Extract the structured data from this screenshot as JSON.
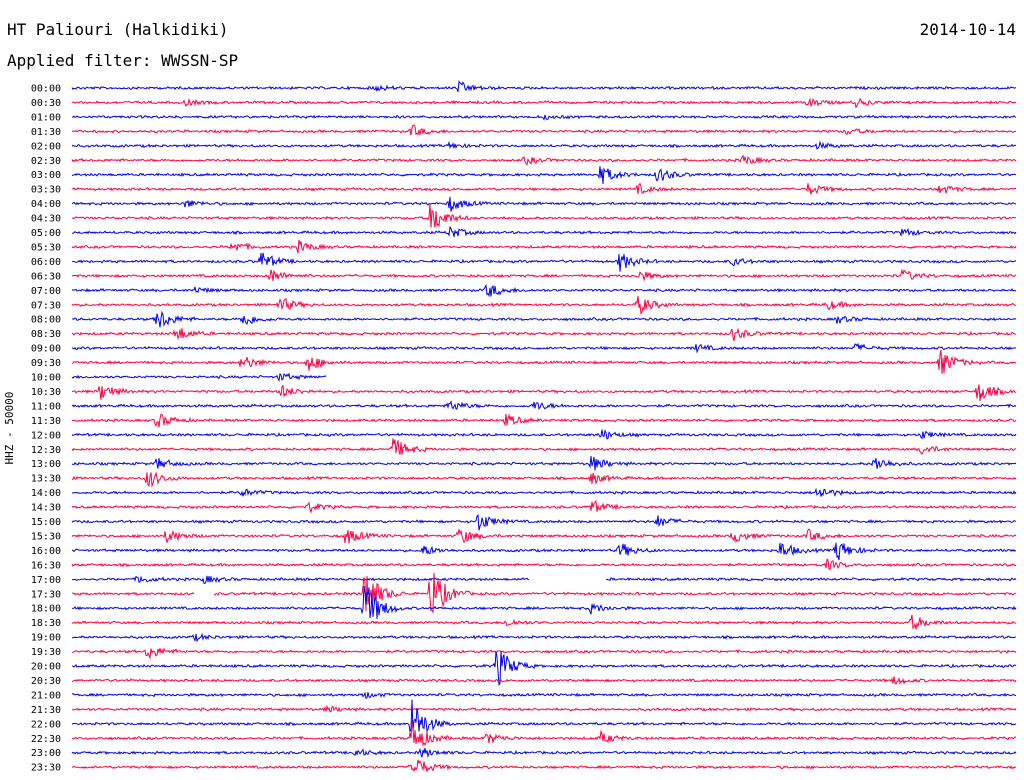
{
  "header": {
    "station": "HT Paliouri (Halkidiki)",
    "date": "2014-10-14",
    "filter": "Applied filter: WWSSN-SP"
  },
  "chart_data": {
    "type": "line",
    "ylabel": "HHZ - 50000",
    "colors": {
      "even": "#0000ee",
      "odd": "#ff0040"
    },
    "rows": [
      {
        "time": "00:00",
        "events": [
          [
            0.32,
            3
          ],
          [
            0.41,
            6
          ]
        ]
      },
      {
        "time": "00:30",
        "events": [
          [
            0.12,
            3
          ],
          [
            0.78,
            4
          ],
          [
            0.83,
            4
          ]
        ]
      },
      {
        "time": "01:00",
        "events": [
          [
            0.5,
            2
          ]
        ]
      },
      {
        "time": "01:30",
        "events": [
          [
            0.36,
            6
          ],
          [
            0.82,
            3
          ]
        ]
      },
      {
        "time": "02:00",
        "events": [
          [
            0.4,
            3
          ],
          [
            0.79,
            3
          ]
        ]
      },
      {
        "time": "02:30",
        "events": [
          [
            0.48,
            4
          ],
          [
            0.71,
            5
          ]
        ]
      },
      {
        "time": "03:00",
        "events": [
          [
            0.56,
            10
          ],
          [
            0.62,
            8
          ]
        ]
      },
      {
        "time": "03:30",
        "events": [
          [
            0.6,
            5
          ],
          [
            0.78,
            6
          ],
          [
            0.92,
            5
          ]
        ]
      },
      {
        "time": "04:00",
        "events": [
          [
            0.12,
            4
          ],
          [
            0.4,
            8
          ]
        ]
      },
      {
        "time": "04:30",
        "events": [
          [
            0.38,
            18
          ]
        ]
      },
      {
        "time": "05:00",
        "events": [
          [
            0.4,
            6
          ],
          [
            0.88,
            4
          ]
        ]
      },
      {
        "time": "05:30",
        "events": [
          [
            0.17,
            6
          ],
          [
            0.24,
            6
          ]
        ]
      },
      {
        "time": "06:00",
        "events": [
          [
            0.2,
            10
          ],
          [
            0.58,
            10
          ],
          [
            0.7,
            4
          ]
        ]
      },
      {
        "time": "06:30",
        "events": [
          [
            0.21,
            7
          ],
          [
            0.6,
            5
          ],
          [
            0.88,
            6
          ]
        ]
      },
      {
        "time": "07:00",
        "events": [
          [
            0.44,
            8
          ],
          [
            0.13,
            3
          ]
        ]
      },
      {
        "time": "07:30",
        "events": [
          [
            0.22,
            8
          ],
          [
            0.6,
            10
          ],
          [
            0.8,
            5
          ]
        ]
      },
      {
        "time": "08:00",
        "events": [
          [
            0.09,
            12
          ],
          [
            0.18,
            8
          ],
          [
            0.81,
            4
          ]
        ]
      },
      {
        "time": "08:30",
        "events": [
          [
            0.11,
            8
          ],
          [
            0.7,
            7
          ]
        ]
      },
      {
        "time": "09:00",
        "events": [
          [
            0.66,
            4
          ],
          [
            0.83,
            4
          ]
        ]
      },
      {
        "time": "09:30",
        "events": [
          [
            0.18,
            8
          ],
          [
            0.25,
            9
          ],
          [
            0.92,
            14
          ]
        ]
      },
      {
        "time": "10:00",
        "events": [
          [
            0.22,
            4
          ]
        ],
        "gap": [
          0.27,
          1.0
        ]
      },
      {
        "time": "10:30",
        "events": [
          [
            0.03,
            9
          ],
          [
            0.22,
            7
          ],
          [
            0.96,
            12
          ]
        ]
      },
      {
        "time": "11:00",
        "events": [
          [
            0.4,
            6
          ],
          [
            0.49,
            5
          ]
        ]
      },
      {
        "time": "11:30",
        "events": [
          [
            0.09,
            8
          ],
          [
            0.46,
            6
          ]
        ]
      },
      {
        "time": "12:00",
        "events": [
          [
            0.56,
            6
          ],
          [
            0.9,
            4
          ]
        ]
      },
      {
        "time": "12:30",
        "events": [
          [
            0.34,
            12
          ],
          [
            0.9,
            5
          ]
        ]
      },
      {
        "time": "13:00",
        "events": [
          [
            0.09,
            6
          ],
          [
            0.55,
            8
          ],
          [
            0.85,
            8
          ]
        ]
      },
      {
        "time": "13:30",
        "events": [
          [
            0.08,
            10
          ],
          [
            0.55,
            6
          ]
        ]
      },
      {
        "time": "14:00",
        "events": [
          [
            0.18,
            4
          ],
          [
            0.79,
            7
          ]
        ]
      },
      {
        "time": "14:30",
        "events": [
          [
            0.25,
            5
          ],
          [
            0.55,
            7
          ]
        ]
      },
      {
        "time": "15:00",
        "events": [
          [
            0.43,
            10
          ],
          [
            0.62,
            6
          ]
        ]
      },
      {
        "time": "15:30",
        "events": [
          [
            0.1,
            7
          ],
          [
            0.29,
            9
          ],
          [
            0.41,
            9
          ],
          [
            0.7,
            7
          ],
          [
            0.78,
            6
          ]
        ]
      },
      {
        "time": "16:00",
        "events": [
          [
            0.37,
            6
          ],
          [
            0.58,
            8
          ],
          [
            0.75,
            9
          ],
          [
            0.81,
            12
          ]
        ]
      },
      {
        "time": "16:30",
        "events": [
          [
            0.8,
            5
          ]
        ]
      },
      {
        "time": "17:00",
        "events": [
          [
            0.07,
            4
          ],
          [
            0.14,
            4
          ]
        ],
        "gap": [
          0.485,
          0.565
        ]
      },
      {
        "time": "17:30",
        "events": [
          [
            0.31,
            28
          ],
          [
            0.38,
            30
          ]
        ],
        "gap": [
          0.13,
          0.15
        ]
      },
      {
        "time": "18:00",
        "events": [
          [
            0.31,
            30
          ],
          [
            0.55,
            5
          ]
        ]
      },
      {
        "time": "18:30",
        "events": [
          [
            0.46,
            4
          ],
          [
            0.89,
            8
          ]
        ]
      },
      {
        "time": "19:00",
        "events": [
          [
            0.13,
            3
          ]
        ]
      },
      {
        "time": "19:30",
        "events": [
          [
            0.08,
            8
          ]
        ]
      },
      {
        "time": "20:00",
        "events": [
          [
            0.45,
            22
          ]
        ]
      },
      {
        "time": "20:30",
        "events": [
          [
            0.87,
            4
          ]
        ]
      },
      {
        "time": "21:00",
        "events": [
          [
            0.31,
            3
          ]
        ]
      },
      {
        "time": "21:30",
        "events": [
          [
            0.27,
            3
          ]
        ]
      },
      {
        "time": "22:00",
        "events": [
          [
            0.36,
            26
          ]
        ]
      },
      {
        "time": "22:30",
        "events": [
          [
            0.36,
            18
          ],
          [
            0.44,
            6
          ],
          [
            0.56,
            6
          ]
        ]
      },
      {
        "time": "23:00",
        "events": [
          [
            0.3,
            4
          ],
          [
            0.37,
            5
          ]
        ]
      },
      {
        "time": "23:30",
        "events": [
          [
            0.36,
            14
          ]
        ]
      }
    ]
  }
}
